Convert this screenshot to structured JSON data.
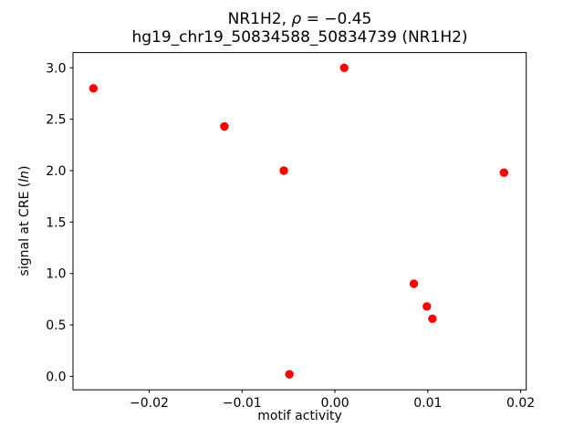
{
  "figure": {
    "title_line1": {
      "part1": "NR1H2, ",
      "rho": "ρ",
      "part2": " = −0.45"
    },
    "title_line2": "hg19_chr19_50834588_50834739 (NR1H2)",
    "xlabel": "motif activity",
    "ylabel": {
      "part1": "signal at CRE (",
      "italic": "ln",
      "part2": ")"
    }
  },
  "chart_data": {
    "type": "scatter",
    "title": "NR1H2, ρ = −0.45",
    "subtitle": "hg19_chr19_50834588_50834739 (NR1H2)",
    "xlabel": "motif activity",
    "ylabel": "signal at CRE (ln)",
    "legend": null,
    "grid": false,
    "marker_color": "#ff0000",
    "marker_radius_px": 4.7,
    "axis_color": "#000000",
    "xlim": [
      -0.0282,
      0.0206
    ],
    "ylim": [
      -0.131,
      3.148
    ],
    "xticks": {
      "values": [
        -0.02,
        -0.01,
        0.0,
        0.01,
        0.02
      ],
      "labels": [
        "−0.02",
        "−0.01",
        "0.00",
        "0.01",
        "0.02"
      ]
    },
    "yticks": {
      "values": [
        0.0,
        0.5,
        1.0,
        1.5,
        2.0,
        2.5,
        3.0
      ],
      "labels": [
        "0.0",
        "0.5",
        "1.0",
        "1.5",
        "2.0",
        "2.5",
        "3.0"
      ]
    },
    "points": [
      {
        "x": -0.026,
        "y": 2.8
      },
      {
        "x": -0.0119,
        "y": 2.43
      },
      {
        "x": -0.0055,
        "y": 2.0
      },
      {
        "x": 0.001,
        "y": 3.0
      },
      {
        "x": 0.0182,
        "y": 1.98
      },
      {
        "x": 0.0085,
        "y": 0.9
      },
      {
        "x": 0.0099,
        "y": 0.68
      },
      {
        "x": 0.0105,
        "y": 0.56
      },
      {
        "x": -0.0049,
        "y": 0.02
      }
    ]
  }
}
